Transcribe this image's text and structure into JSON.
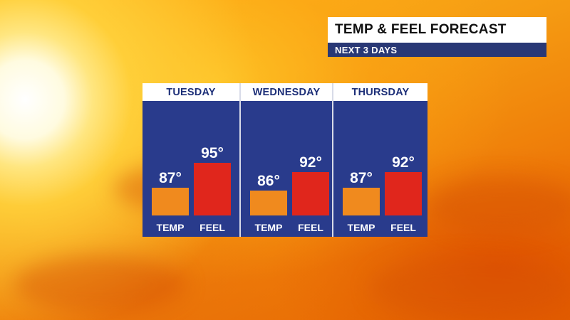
{
  "header": {
    "title": "TEMP & FEEL FORECAST",
    "subtitle": "NEXT 3 DAYS"
  },
  "colors": {
    "temp_bar": "#f08a1e",
    "feel_bar": "#e0261c",
    "panel": "#293b8c",
    "subtitle_bar": "#293875",
    "day_header_text": "#1d2f78"
  },
  "chart_data": {
    "type": "bar",
    "title": "TEMP & FEEL FORECAST",
    "subtitle": "NEXT 3 DAYS",
    "categories": [
      "TUESDAY",
      "WEDNESDAY",
      "THURSDAY"
    ],
    "series": [
      {
        "name": "TEMP",
        "values": [
          87,
          86,
          87
        ],
        "labels": [
          "87°",
          "86°",
          "87°"
        ]
      },
      {
        "name": "FEEL",
        "values": [
          95,
          92,
          92
        ],
        "labels": [
          "95°",
          "92°",
          "92°"
        ]
      }
    ],
    "ylim": [
      78,
      96
    ]
  }
}
